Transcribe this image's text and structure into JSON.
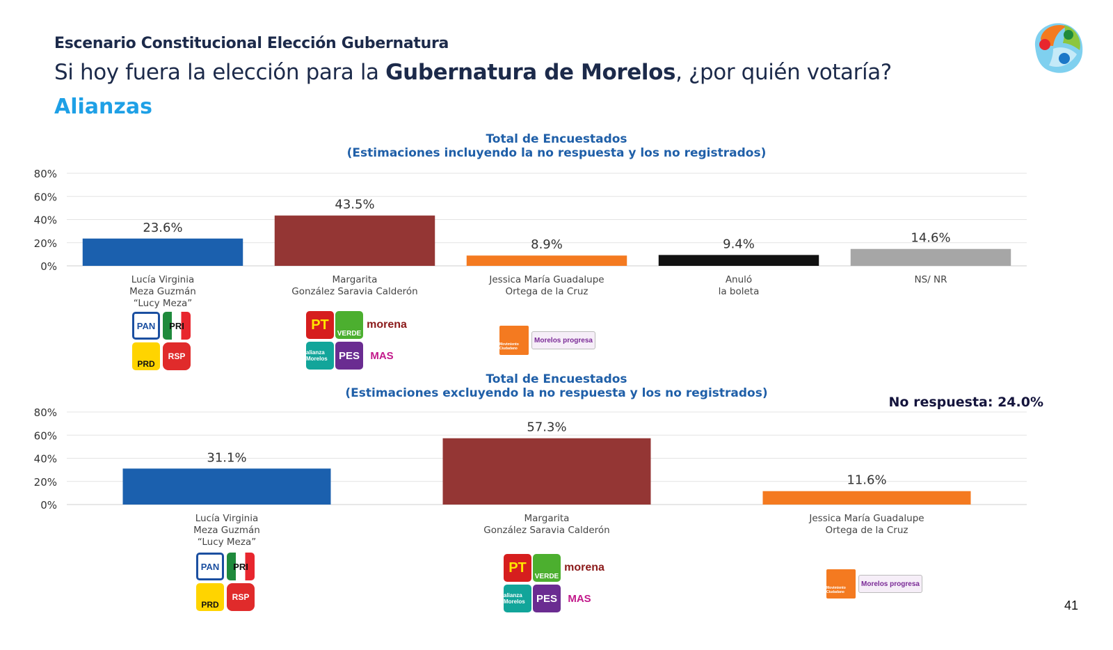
{
  "header": {
    "kicker": "Escenario Constitucional Elección Gubernatura",
    "question_pre": "Si hoy fuera la elección para la ",
    "question_bold": "Gubernatura de Morelos",
    "question_post": ", ¿por quién votaría?",
    "subtitle": "Alianzas"
  },
  "page_number": "41",
  "no_response_note": "No respuesta: 24.0%",
  "colors": {
    "blue": "#1b60ae",
    "red": "#943634",
    "orange": "#f47a20",
    "black": "#111111",
    "gray": "#a6a6a6"
  },
  "party_logos": {
    "alliance_1": [
      "PAN",
      "PRI",
      "PRD",
      "RSP"
    ],
    "alliance_2": [
      "PT",
      "VERDE",
      "morena",
      "alianza Morelos",
      "PES",
      "MAS"
    ],
    "alliance_3": [
      "Movimiento Ciudadano",
      "Morelos progresa"
    ]
  },
  "chart_data": [
    {
      "type": "bar",
      "title": "Total de Encuestados",
      "subtitle": "(Estimaciones incluyendo la no respuesta y los no registrados)",
      "categories": [
        [
          "Lucía Virginia",
          "Meza Guzmán",
          "“Lucy Meza”"
        ],
        [
          "Margarita",
          "González Saravia Calderón"
        ],
        [
          "Jessica María Guadalupe",
          "Ortega de la Cruz"
        ],
        [
          "Anuló",
          "la boleta"
        ],
        [
          "NS/ NR"
        ]
      ],
      "values": [
        23.6,
        43.5,
        8.9,
        9.4,
        14.6
      ],
      "labels": [
        "23.6%",
        "43.5%",
        "8.9%",
        "9.4%",
        "14.6%"
      ],
      "bar_colors": [
        "#1b60ae",
        "#943634",
        "#f47a20",
        "#111111",
        "#a6a6a6"
      ],
      "yticks": [
        "80%",
        "60%",
        "40%",
        "20%",
        "0%"
      ],
      "ylim": [
        0,
        80
      ],
      "grid": true
    },
    {
      "type": "bar",
      "title": "Total de Encuestados",
      "subtitle": "(Estimaciones excluyendo la no respuesta y los no registrados)",
      "categories": [
        [
          "Lucía Virginia",
          "Meza Guzmán",
          "“Lucy Meza”"
        ],
        [
          "Margarita",
          "González Saravia Calderón"
        ],
        [
          "Jessica María Guadalupe",
          "Ortega de la Cruz"
        ]
      ],
      "values": [
        31.1,
        57.3,
        11.6
      ],
      "labels": [
        "31.1%",
        "57.3%",
        "11.6%"
      ],
      "bar_colors": [
        "#1b60ae",
        "#943634",
        "#f47a20"
      ],
      "yticks": [
        "80%",
        "60%",
        "40%",
        "20%",
        "0%"
      ],
      "ylim": [
        0,
        80
      ],
      "grid": true
    }
  ]
}
